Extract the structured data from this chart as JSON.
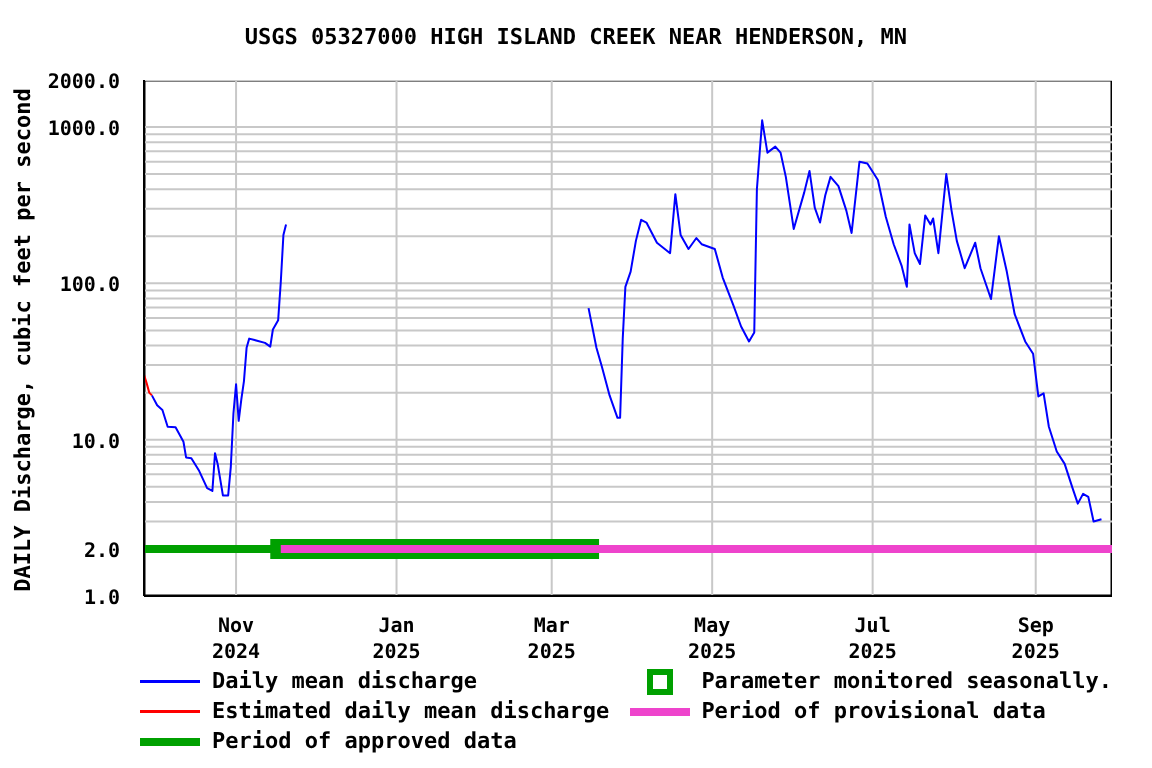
{
  "chart_data": {
    "type": "line",
    "title": "USGS 05327000 HIGH ISLAND CREEK NEAR HENDERSON, MN",
    "ylabel": "DAILY Discharge, cubic feet per second",
    "log": "y",
    "grid": true,
    "legend": "bottom",
    "xlim": [
      "2024-09-27",
      "2025-09-30"
    ],
    "xticks": [
      {
        "value": "2024-11-01",
        "label": "Nov\n2024"
      },
      {
        "value": "2025-01-01",
        "label": "Jan\n2025"
      },
      {
        "value": "2025-03-01",
        "label": "Mar\n2025"
      },
      {
        "value": "2025-05-01",
        "label": "May\n2025"
      },
      {
        "value": "2025-07-01",
        "label": "Jul\n2025"
      },
      {
        "value": "2025-09-01",
        "label": "Sep\n2025"
      }
    ],
    "ylim": [
      1,
      2000
    ],
    "yticks": [
      {
        "value": 1,
        "label": "1.0"
      },
      {
        "value": 2,
        "label": "2.0"
      },
      {
        "value": 3,
        "label": null
      },
      {
        "value": 4,
        "label": null
      },
      {
        "value": 5,
        "label": null
      },
      {
        "value": 6,
        "label": null
      },
      {
        "value": 7,
        "label": null
      },
      {
        "value": 8,
        "label": null
      },
      {
        "value": 9,
        "label": null
      },
      {
        "value": 10,
        "label": "10.0"
      },
      {
        "value": 20,
        "label": null
      },
      {
        "value": 30,
        "label": null
      },
      {
        "value": 40,
        "label": null
      },
      {
        "value": 50,
        "label": null
      },
      {
        "value": 60,
        "label": null
      },
      {
        "value": 70,
        "label": null
      },
      {
        "value": 80,
        "label": null
      },
      {
        "value": 90,
        "label": null
      },
      {
        "value": 100,
        "label": "100.0"
      },
      {
        "value": 200,
        "label": null
      },
      {
        "value": 300,
        "label": null
      },
      {
        "value": 400,
        "label": null
      },
      {
        "value": 500,
        "label": null
      },
      {
        "value": 600,
        "label": null
      },
      {
        "value": 700,
        "label": null
      },
      {
        "value": 800,
        "label": null
      },
      {
        "value": 900,
        "label": null
      },
      {
        "value": 1000,
        "label": "1000.0"
      },
      {
        "value": 2000,
        "label": "2000.0"
      }
    ],
    "series": [
      {
        "name": "Daily mean discharge",
        "color": "#0000ff",
        "x": [
          "2024-09-30",
          "2024-10-02",
          "2024-10-04",
          "2024-10-06",
          "2024-10-09",
          "2024-10-12",
          "2024-10-13",
          "2024-10-15",
          "2024-10-18",
          "2024-10-21",
          "2024-10-23",
          "2024-10-24",
          "2024-10-25",
          "2024-10-27",
          "2024-10-29",
          "2024-10-30",
          "2024-10-31",
          "2024-11-01",
          "2024-11-02",
          "2024-11-03",
          "2024-11-04",
          "2024-11-05",
          "2024-11-06",
          "2024-11-09",
          "2024-11-12",
          "2024-11-14",
          "2024-11-15",
          "2024-11-17",
          "2024-11-18",
          "2024-11-19",
          "2024-11-20",
          "2024-11-21",
          "2025-03-15",
          "2025-03-18",
          "2025-03-20",
          "2025-03-23",
          "2025-03-26",
          "2025-03-27",
          "2025-03-28",
          "2025-03-29",
          "2025-03-31",
          "2025-04-02",
          "2025-04-04",
          "2025-04-06",
          "2025-04-10",
          "2025-04-15",
          "2025-04-17",
          "2025-04-19",
          "2025-04-22",
          "2025-04-25",
          "2025-04-27",
          "2025-05-02",
          "2025-05-05",
          "2025-05-09",
          "2025-05-12",
          "2025-05-15",
          "2025-05-17",
          "2025-05-18",
          "2025-05-20",
          "2025-05-22",
          "2025-05-25",
          "2025-05-27",
          "2025-05-29",
          "2025-06-01",
          "2025-06-05",
          "2025-06-07",
          "2025-06-09",
          "2025-06-11",
          "2025-06-13",
          "2025-06-15",
          "2025-06-18",
          "2025-06-21",
          "2025-06-23",
          "2025-06-26",
          "2025-06-29",
          "2025-07-03",
          "2025-07-06",
          "2025-07-09",
          "2025-07-12",
          "2025-07-14",
          "2025-07-15",
          "2025-07-17",
          "2025-07-19",
          "2025-07-21",
          "2025-07-23",
          "2025-07-24",
          "2025-07-26",
          "2025-07-29",
          "2025-07-31",
          "2025-08-02",
          "2025-08-05",
          "2025-08-09",
          "2025-08-11",
          "2025-08-15",
          "2025-08-18",
          "2025-08-21",
          "2025-08-24",
          "2025-08-28",
          "2025-08-31",
          "2025-09-02",
          "2025-09-04",
          "2025-09-06",
          "2025-09-09",
          "2025-09-12",
          "2025-09-15",
          "2025-09-17",
          "2025-09-19",
          "2025-09-21",
          "2025-09-23",
          "2025-09-26"
        ],
        "values": [
          19.2,
          16.6,
          15.5,
          12.1,
          12,
          9.7,
          7.7,
          7.6,
          6.3,
          4.9,
          4.7,
          8.2,
          7.0,
          4.4,
          4.4,
          6.7,
          14.7,
          22.6,
          13.2,
          18.1,
          23.7,
          38.7,
          44.3,
          43,
          41.6,
          39.4,
          50.7,
          58,
          102,
          204,
          238,
          null,
          69.5,
          38.7,
          29.6,
          19.2,
          13.8,
          13.8,
          44.3,
          95,
          119,
          187,
          255,
          245,
          182,
          156,
          372,
          204,
          166,
          195,
          178,
          166,
          109,
          72.8,
          53,
          42.5,
          48.5,
          400,
          1104,
          686,
          750,
          686,
          480,
          223,
          382,
          524,
          305,
          245,
          366,
          480,
          419,
          292,
          210,
          600,
          584,
          458,
          267,
          178,
          130,
          95,
          238,
          156,
          133,
          272,
          238,
          260,
          156,
          500,
          292,
          187,
          125,
          182,
          125,
          79.4,
          200,
          119,
          63.5,
          42.5,
          35.5,
          18.9,
          19.8,
          12.1,
          8.4,
          7.0,
          4.9,
          3.9,
          4.5,
          4.3,
          3.0,
          3.1
        ]
      },
      {
        "name": "Estimated daily mean discharge",
        "color": "#ff0000",
        "x": [
          "2024-09-27",
          "2024-09-28",
          "2024-09-29",
          "2024-09-30"
        ],
        "values": [
          26,
          23,
          20,
          19.2
        ]
      },
      {
        "name": "Period of approved data",
        "color": "#00a000",
        "x": [
          "2024-09-27",
          "2024-11-18"
        ],
        "values": [
          2,
          2
        ]
      },
      {
        "name": "Parameter monitored seasonally.",
        "color": "#00a000",
        "x": [
          "2024-11-14",
          "2025-03-19"
        ],
        "values": [
          2,
          2
        ]
      },
      {
        "name": "Period of provisional data",
        "color": "#ee44cc",
        "x": [
          "2024-11-18",
          "2025-09-30"
        ],
        "values": [
          2,
          2
        ]
      }
    ]
  }
}
